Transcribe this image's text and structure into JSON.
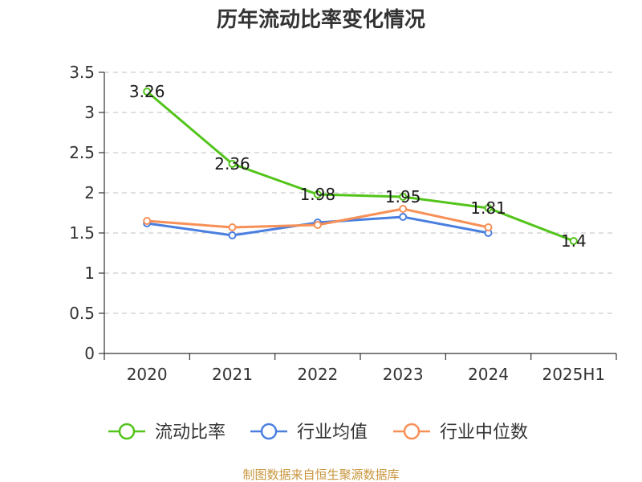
{
  "chart_data": {
    "type": "line",
    "title": "历年流动比率变化情况",
    "categories": [
      "2020",
      "2021",
      "2022",
      "2023",
      "2024",
      "2025H1"
    ],
    "ylim": [
      0,
      3.5
    ],
    "yticks": [
      0,
      0.5,
      1,
      1.5,
      2,
      2.5,
      3,
      3.5
    ],
    "ytick_labels": [
      "0",
      "0.5",
      "1",
      "1.5",
      "2",
      "2.5",
      "3",
      "3.5"
    ],
    "grid": true,
    "legend_position": "bottom",
    "series": [
      {
        "name": "流动比率",
        "color": "#52c41a",
        "values": [
          3.26,
          2.36,
          1.98,
          1.95,
          1.81,
          1.4
        ],
        "labels": [
          "3.26",
          "2.36",
          "1.98",
          "1.95",
          "1.81",
          "1.4"
        ]
      },
      {
        "name": "行业均值",
        "color": "#4a7fe0",
        "values": [
          1.62,
          1.47,
          1.63,
          1.7,
          1.5,
          null
        ]
      },
      {
        "name": "行业中位数",
        "color": "#f79056",
        "values": [
          1.65,
          1.57,
          1.6,
          1.8,
          1.57,
          null
        ]
      }
    ]
  },
  "source_text": "制图数据来自恒生聚源数据库"
}
